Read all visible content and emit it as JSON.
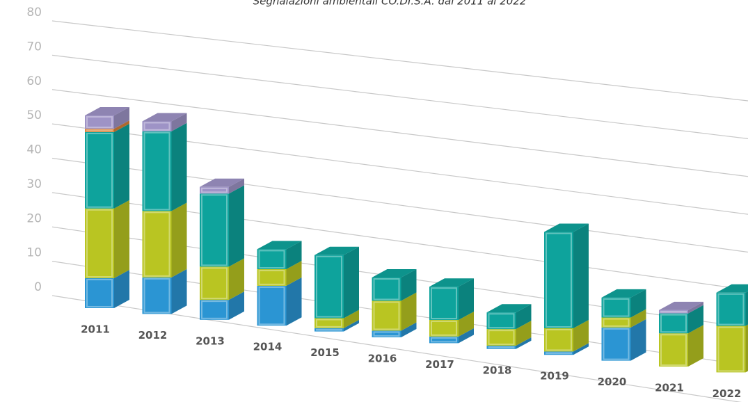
{
  "chart_data": {
    "type": "bar3d",
    "title": "Segnalazioni ambientali CO.DI.S.A. dal 2011 al 2022",
    "categories": [
      "2011",
      "2012",
      "2013",
      "2014",
      "2015",
      "2016",
      "2017",
      "2018",
      "2019",
      "2020",
      "2021",
      "2022"
    ],
    "series": [
      {
        "color": "#2b95d3",
        "values": [
          9,
          11,
          6,
          12,
          1,
          2,
          2,
          1,
          1,
          10,
          0,
          0
        ]
      },
      {
        "color": "#b9c522",
        "values": [
          21,
          20,
          10,
          5,
          3,
          9,
          5,
          5,
          7,
          3,
          10,
          14
        ]
      },
      {
        "color": "#0ea39c",
        "values": [
          23,
          24,
          22,
          6,
          19,
          7,
          10,
          5,
          29,
          6,
          6,
          10
        ]
      },
      {
        "color": "#d9833a",
        "values": [
          1,
          0,
          0,
          0,
          0,
          0,
          0,
          0,
          0,
          0,
          0,
          0
        ]
      },
      {
        "color": "#9e93c6",
        "values": [
          4,
          3,
          2,
          0,
          0,
          0,
          0,
          0,
          0,
          0,
          1,
          0
        ]
      }
    ],
    "stacked": true,
    "ylim": [
      0,
      80
    ],
    "yticks": [
      0,
      10,
      20,
      30,
      40,
      50,
      60,
      70,
      80
    ],
    "grid": true
  }
}
